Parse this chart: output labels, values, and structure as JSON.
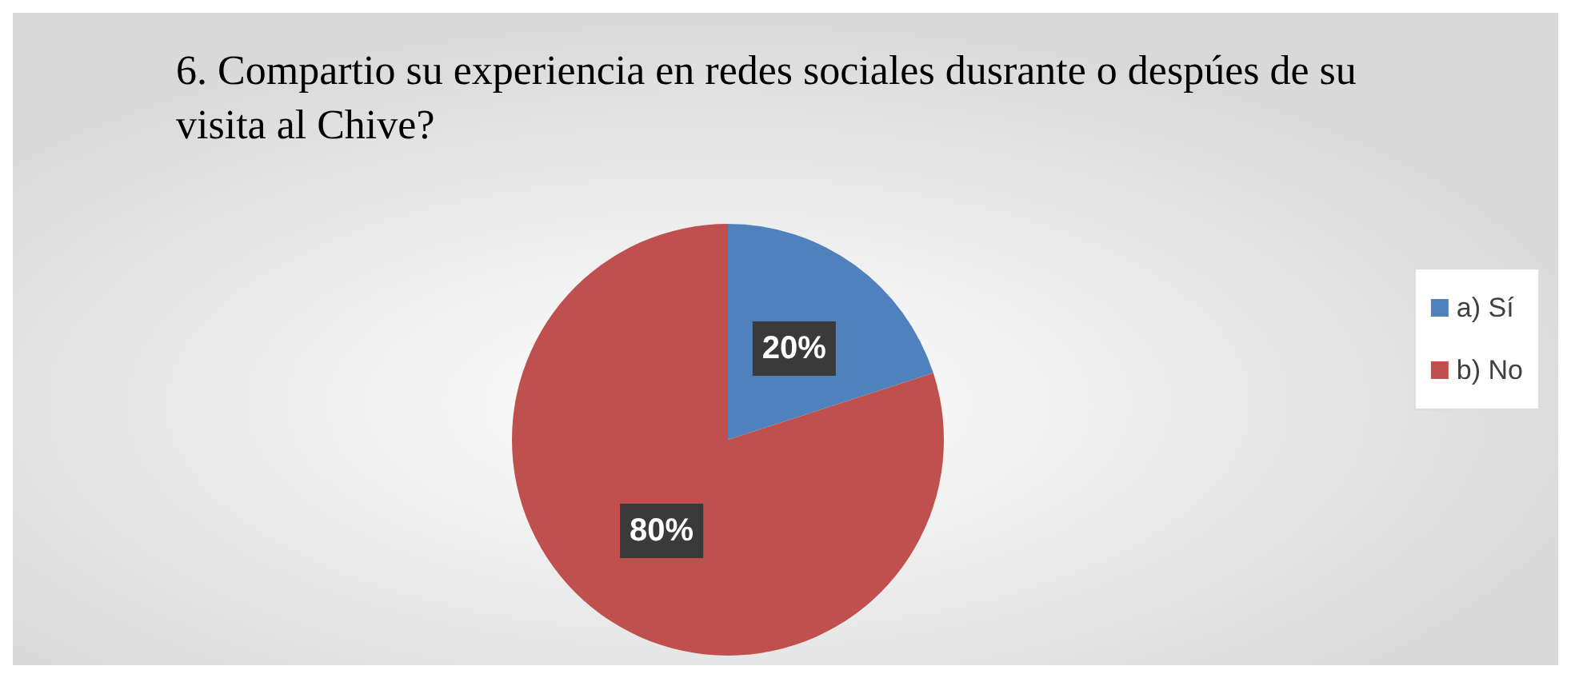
{
  "chart_data": {
    "type": "pie",
    "title": "6. Compartio su experiencia en redes sociales dusrante o despúes de su visita al Chive?",
    "categories": [
      "a) Sí",
      "b) No"
    ],
    "values": [
      20,
      80
    ],
    "colors": [
      "#4f81bd",
      "#c0504d"
    ],
    "value_labels": [
      "20%",
      "80%"
    ],
    "legend": "right"
  }
}
